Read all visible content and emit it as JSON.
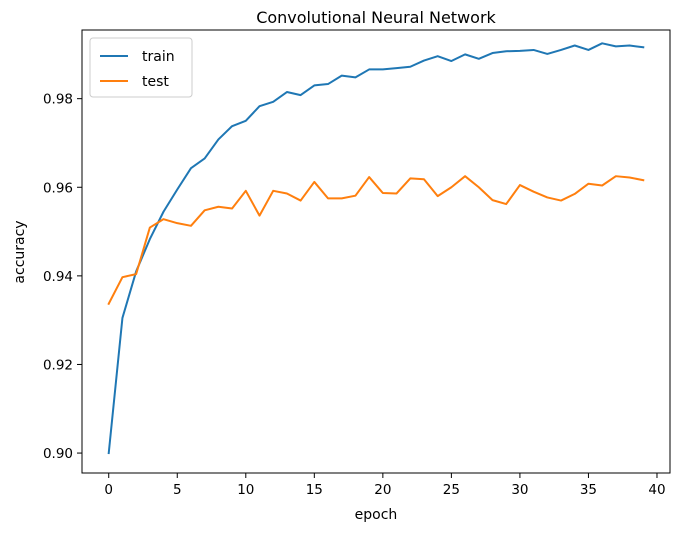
{
  "chart_data": {
    "type": "line",
    "title": "Convolutional Neural Network",
    "xlabel": "epoch",
    "ylabel": "accuracy",
    "xlim": [
      -1.95,
      40.95
    ],
    "ylim": [
      0.8955,
      0.9955
    ],
    "xticks": [
      0,
      5,
      10,
      15,
      20,
      25,
      30,
      35,
      40
    ],
    "xtick_labels": [
      "0",
      "5",
      "10",
      "15",
      "20",
      "25",
      "30",
      "35",
      "40"
    ],
    "yticks": [
      0.9,
      0.92,
      0.94,
      0.96,
      0.98
    ],
    "ytick_labels": [
      "0.90",
      "0.92",
      "0.94",
      "0.96",
      "0.98"
    ],
    "grid": false,
    "legend_position": "top-left",
    "x": [
      0,
      1,
      2,
      3,
      4,
      5,
      6,
      7,
      8,
      9,
      10,
      11,
      12,
      13,
      14,
      15,
      16,
      17,
      18,
      19,
      20,
      21,
      22,
      23,
      24,
      25,
      26,
      27,
      28,
      29,
      30,
      31,
      32,
      33,
      34,
      35,
      36,
      37,
      38,
      39
    ],
    "series": [
      {
        "name": "train",
        "color": "#1f77b4",
        "values": [
          0.9,
          0.9305,
          0.941,
          0.9483,
          0.9545,
          0.9595,
          0.9643,
          0.9665,
          0.9708,
          0.9738,
          0.975,
          0.9783,
          0.9793,
          0.9815,
          0.9808,
          0.983,
          0.9833,
          0.9852,
          0.9848,
          0.9866,
          0.9866,
          0.9869,
          0.9872,
          0.9886,
          0.9896,
          0.9885,
          0.99,
          0.989,
          0.9903,
          0.9907,
          0.9908,
          0.991,
          0.9901,
          0.991,
          0.992,
          0.991,
          0.9925,
          0.9918,
          0.992,
          0.9916
        ]
      },
      {
        "name": "test",
        "color": "#ff7f0e",
        "values": [
          0.9337,
          0.9397,
          0.9404,
          0.9509,
          0.9528,
          0.9519,
          0.9513,
          0.9548,
          0.9556,
          0.9552,
          0.9592,
          0.9536,
          0.9592,
          0.9586,
          0.957,
          0.9612,
          0.9575,
          0.9575,
          0.9581,
          0.9623,
          0.9587,
          0.9586,
          0.962,
          0.9618,
          0.958,
          0.96,
          0.9625,
          0.96,
          0.9571,
          0.9562,
          0.9605,
          0.959,
          0.9577,
          0.957,
          0.9585,
          0.9608,
          0.9604,
          0.9625,
          0.9622,
          0.9616
        ]
      }
    ]
  }
}
